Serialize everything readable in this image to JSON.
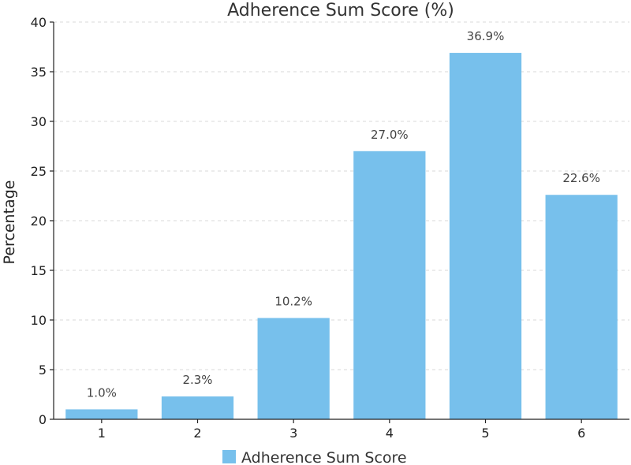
{
  "chart_data": {
    "type": "bar",
    "title": "Adherence Sum Score (%)",
    "xlabel": "",
    "ylabel": "Percentage",
    "categories": [
      "1",
      "2",
      "3",
      "4",
      "5",
      "6"
    ],
    "series": [
      {
        "name": "Adherence Sum Score",
        "values": [
          1.0,
          2.3,
          10.2,
          27.0,
          36.9,
          22.6
        ],
        "data_labels": [
          "1.0%",
          "2.3%",
          "10.2%",
          "27.0%",
          "36.9%",
          "22.6%"
        ]
      }
    ],
    "ylim": [
      0,
      40
    ],
    "yticks": [
      0,
      5,
      10,
      15,
      20,
      25,
      30,
      35,
      40
    ],
    "grid": true,
    "legend": "bottom-center",
    "colors": {
      "bar": "#77c0ec",
      "axis": "#222222",
      "grid": "#d9d9d9"
    }
  }
}
